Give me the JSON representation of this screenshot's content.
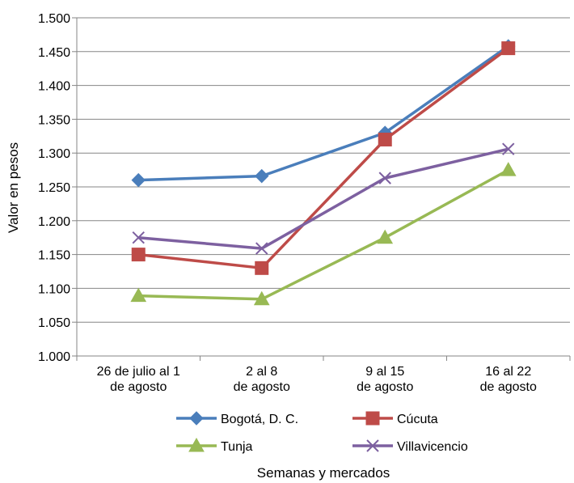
{
  "chart_data": {
    "type": "line",
    "title": "",
    "xlabel": "Semanas y mercados",
    "ylabel": "Valor en pesos",
    "categories": [
      [
        "26 de julio al 1",
        "de agosto"
      ],
      [
        "2 al 8",
        "de agosto"
      ],
      [
        "9 al 15",
        "de agosto"
      ],
      [
        "16 al 22",
        "de agosto"
      ]
    ],
    "ylim": [
      1000,
      1500
    ],
    "yticks": [
      1000,
      1050,
      1100,
      1150,
      1200,
      1250,
      1300,
      1350,
      1400,
      1450,
      1500
    ],
    "ytick_labels": [
      "1.000",
      "1.050",
      "1.100",
      "1.150",
      "1.200",
      "1.250",
      "1.300",
      "1.350",
      "1.400",
      "1.450",
      "1.500"
    ],
    "grid": "horizontal",
    "legend_position": "bottom",
    "series": [
      {
        "name": "Bogotá, D. C.",
        "values": [
          1260,
          1266,
          1330,
          1458
        ],
        "color": "#4a7ebb",
        "marker": "diamond"
      },
      {
        "name": "Cúcuta",
        "values": [
          1150,
          1130,
          1320,
          1455
        ],
        "color": "#be4b48",
        "marker": "square"
      },
      {
        "name": "Tunja",
        "values": [
          1089,
          1084,
          1175,
          1275
        ],
        "color": "#98b954",
        "marker": "triangle"
      },
      {
        "name": "Villavicencio",
        "values": [
          1175,
          1159,
          1263,
          1306
        ],
        "color": "#7d60a0",
        "marker": "x"
      }
    ]
  }
}
